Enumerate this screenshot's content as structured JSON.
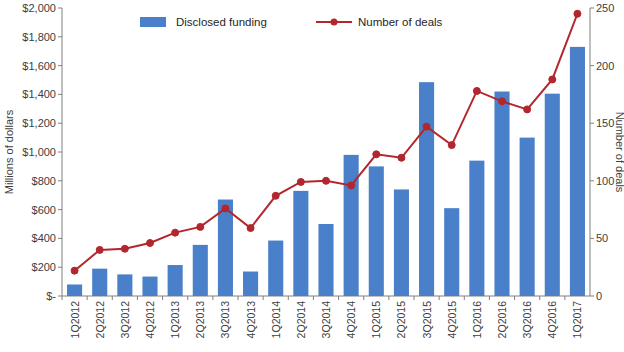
{
  "chart_data": {
    "type": "bar",
    "y_label": "Millions of dollars",
    "y2_label": "Number of deals",
    "categories": [
      "1Q2012",
      "2Q2012",
      "3Q2012",
      "4Q2012",
      "1Q2013",
      "2Q2013",
      "3Q2013",
      "4Q2013",
      "1Q2014",
      "2Q2014",
      "3Q2014",
      "4Q2014",
      "1Q2015",
      "2Q2015",
      "3Q2015",
      "4Q2015",
      "1Q2016",
      "2Q2016",
      "3Q2016",
      "4Q2016",
      "1Q2017"
    ],
    "series": [
      {
        "name": "Disclosed funding",
        "type": "bar",
        "color": "#4a7fc9",
        "values": [
          80,
          190,
          150,
          135,
          215,
          355,
          670,
          170,
          385,
          730,
          500,
          980,
          900,
          740,
          1485,
          610,
          940,
          1420,
          1100,
          1405,
          1730
        ]
      },
      {
        "name": "Number of deals",
        "type": "line",
        "axis": "y2",
        "color": "#b3262e",
        "marker": "circle",
        "line_style": "solid",
        "values": [
          22,
          40,
          41,
          46,
          55,
          60,
          76,
          59,
          87,
          99,
          100,
          96,
          123,
          120,
          147,
          131,
          178,
          169,
          162,
          188,
          245
        ]
      }
    ],
    "ylim": [
      0,
      2000
    ],
    "yticks": [
      {
        "value": 0,
        "label": "$-"
      },
      {
        "value": 200,
        "label": "$200"
      },
      {
        "value": 400,
        "label": "$400"
      },
      {
        "value": 600,
        "label": "$600"
      },
      {
        "value": 800,
        "label": "$800"
      },
      {
        "value": 1000,
        "label": "$1,000"
      },
      {
        "value": 1200,
        "label": "$1,200"
      },
      {
        "value": 1400,
        "label": "$1,400"
      },
      {
        "value": 1600,
        "label": "$1,600"
      },
      {
        "value": 1800,
        "label": "$1,800"
      },
      {
        "value": 2000,
        "label": "$2,000"
      }
    ],
    "y2lim": [
      0,
      250
    ],
    "y2ticks": [
      0,
      50,
      100,
      150,
      200,
      250
    ],
    "grid": false,
    "legend": "top"
  }
}
